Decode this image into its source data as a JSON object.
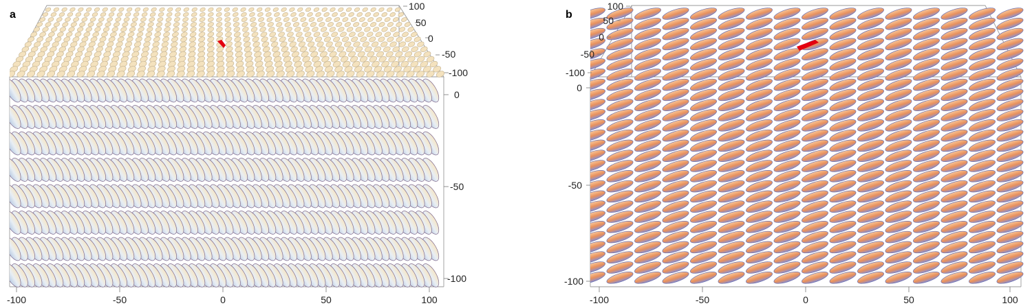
{
  "panels": [
    {
      "letter": "a",
      "x_ticks": [
        "-100",
        "-50",
        "0",
        "50",
        "100"
      ],
      "z_ticks": [
        "0",
        "-50",
        "-100"
      ],
      "depth_ticks": [
        "100",
        "50",
        "0",
        "-50",
        "-100"
      ],
      "highlight_color": "#e3000f",
      "shading": "pale",
      "top_color": "#f3deb8",
      "base_color": "#d7e4f1"
    },
    {
      "letter": "b",
      "x_ticks": [
        "-100",
        "-50",
        "0",
        "50",
        "100"
      ],
      "z_ticks": [
        "0",
        "-50",
        "-100"
      ],
      "depth_ticks": [
        "100",
        "50",
        "0",
        "-50",
        "-100"
      ],
      "highlight_color": "#e3000f",
      "shading": "warm",
      "top_color": "#f6b27c",
      "base_color": "#7d86c6"
    }
  ]
}
